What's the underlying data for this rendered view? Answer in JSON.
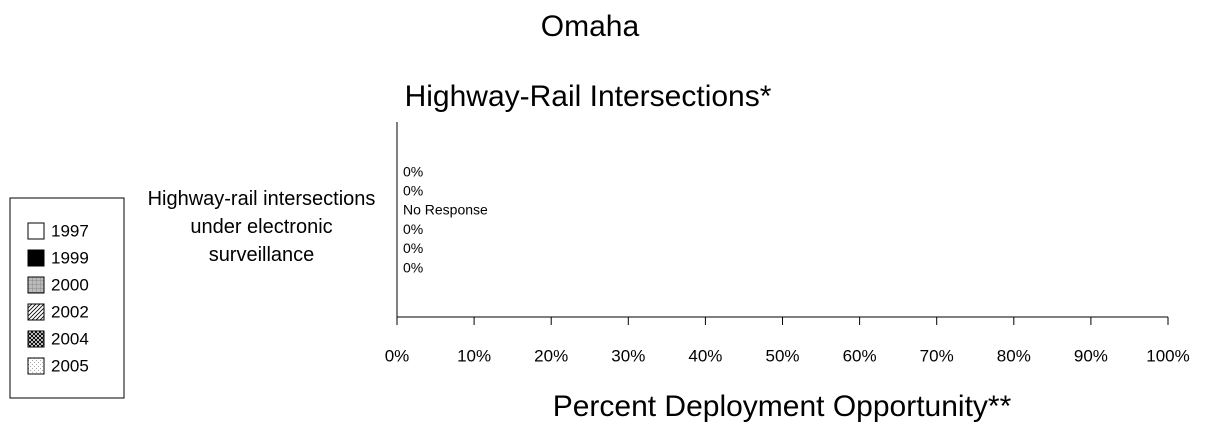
{
  "chart_data": {
    "type": "barh",
    "title": "Omaha",
    "subtitle": "Highway-Rail Intersections*",
    "x_label": "Percent Deployment Opportunity**",
    "categories": [
      "Highway-rail intersections under electronic surveillance"
    ],
    "series": [
      {
        "name": "1997",
        "color": "#ffffff",
        "pattern": "solid",
        "values": [
          0
        ],
        "value_labels": [
          "0%"
        ]
      },
      {
        "name": "1999",
        "color": "#000000",
        "pattern": "solid",
        "values": [
          0
        ],
        "value_labels": [
          "0%"
        ]
      },
      {
        "name": "2000",
        "color": "#888888",
        "pattern": "grid",
        "values": [
          null
        ],
        "value_labels": [
          "No Response"
        ]
      },
      {
        "name": "2002",
        "color": "#000000",
        "pattern": "diagonal",
        "values": [
          0
        ],
        "value_labels": [
          "0%"
        ]
      },
      {
        "name": "2004",
        "color": "#000000",
        "pattern": "crosshatch",
        "values": [
          0
        ],
        "value_labels": [
          "0%"
        ]
      },
      {
        "name": "2005",
        "color": "#aaaaaa",
        "pattern": "dots",
        "values": [
          0
        ],
        "value_labels": [
          "0%"
        ]
      }
    ],
    "xlim": [
      0,
      100
    ],
    "xticks": [
      {
        "value": 0,
        "label": "0%"
      },
      {
        "value": 10,
        "label": "10%"
      },
      {
        "value": 20,
        "label": "20%"
      },
      {
        "value": 30,
        "label": "30%"
      },
      {
        "value": 40,
        "label": "40%"
      },
      {
        "value": 50,
        "label": "50%"
      },
      {
        "value": 60,
        "label": "60%"
      },
      {
        "value": 70,
        "label": "70%"
      },
      {
        "value": 80,
        "label": "80%"
      },
      {
        "value": 90,
        "label": "90%"
      },
      {
        "value": 100,
        "label": "100%"
      }
    ],
    "legend": "left"
  }
}
